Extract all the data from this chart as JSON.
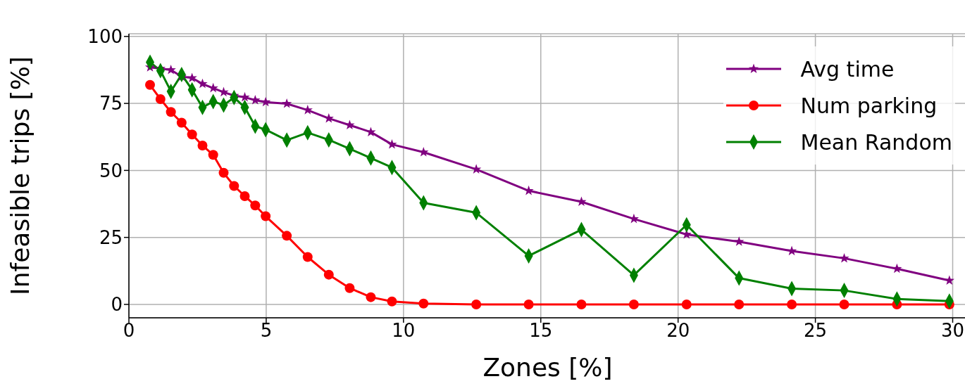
{
  "chart_data": {
    "type": "line",
    "xlabel": "Zones [%]",
    "ylabel": "Infeasible trips [%]",
    "x": [
      0.77,
      1.15,
      1.53,
      1.92,
      2.3,
      2.68,
      3.07,
      3.45,
      3.83,
      4.22,
      4.6,
      4.98,
      5.75,
      6.51,
      7.28,
      8.04,
      8.81,
      9.58,
      10.73,
      12.65,
      14.56,
      16.48,
      18.39,
      20.31,
      22.22,
      24.14,
      26.05,
      27.97,
      29.88
    ],
    "series": [
      {
        "name": "Avg time",
        "color": "#800080",
        "marker": "star",
        "values": [
          88.5,
          88,
          87.5,
          85,
          84.5,
          82.3,
          80.7,
          79.2,
          77.9,
          77.3,
          76.2,
          75.5,
          74.9,
          72.5,
          69.4,
          66.9,
          64.3,
          59.7,
          56.8,
          50.4,
          42.4,
          38.3,
          31.9,
          26.1,
          23.4,
          19.9,
          17.2,
          13.3,
          8.9
        ]
      },
      {
        "name": "Num parking",
        "color": "#ff0000",
        "marker": "circle",
        "values": [
          81.9,
          76.6,
          71.8,
          67.8,
          63.4,
          59.3,
          55.8,
          49.1,
          44.2,
          40.4,
          36.9,
          32.9,
          25.6,
          17.7,
          11.1,
          6.1,
          2.7,
          1.1,
          0.3,
          0,
          0,
          0,
          0,
          0,
          0,
          0,
          0,
          0,
          0
        ]
      },
      {
        "name": "Mean Random",
        "color": "#008000",
        "marker": "diamond",
        "values": [
          90.4,
          87.2,
          79.5,
          85.8,
          80.1,
          73.5,
          75.7,
          74.4,
          77.2,
          73.5,
          66.5,
          65.2,
          61.3,
          64.1,
          61.4,
          58.1,
          54.6,
          51.1,
          37.9,
          34.2,
          18.1,
          27.9,
          10.9,
          29.7,
          9.8,
          5.9,
          5.2,
          2.0,
          1.2
        ]
      }
    ],
    "xlim": [
      0,
      30.5
    ],
    "xticks": [
      0,
      5,
      10,
      15,
      20,
      25,
      30
    ],
    "ylim": [
      -5,
      101
    ],
    "yticks": [
      0,
      25,
      50,
      75,
      100
    ],
    "grid": true,
    "legend": "top right",
    "line_style": "solid"
  }
}
